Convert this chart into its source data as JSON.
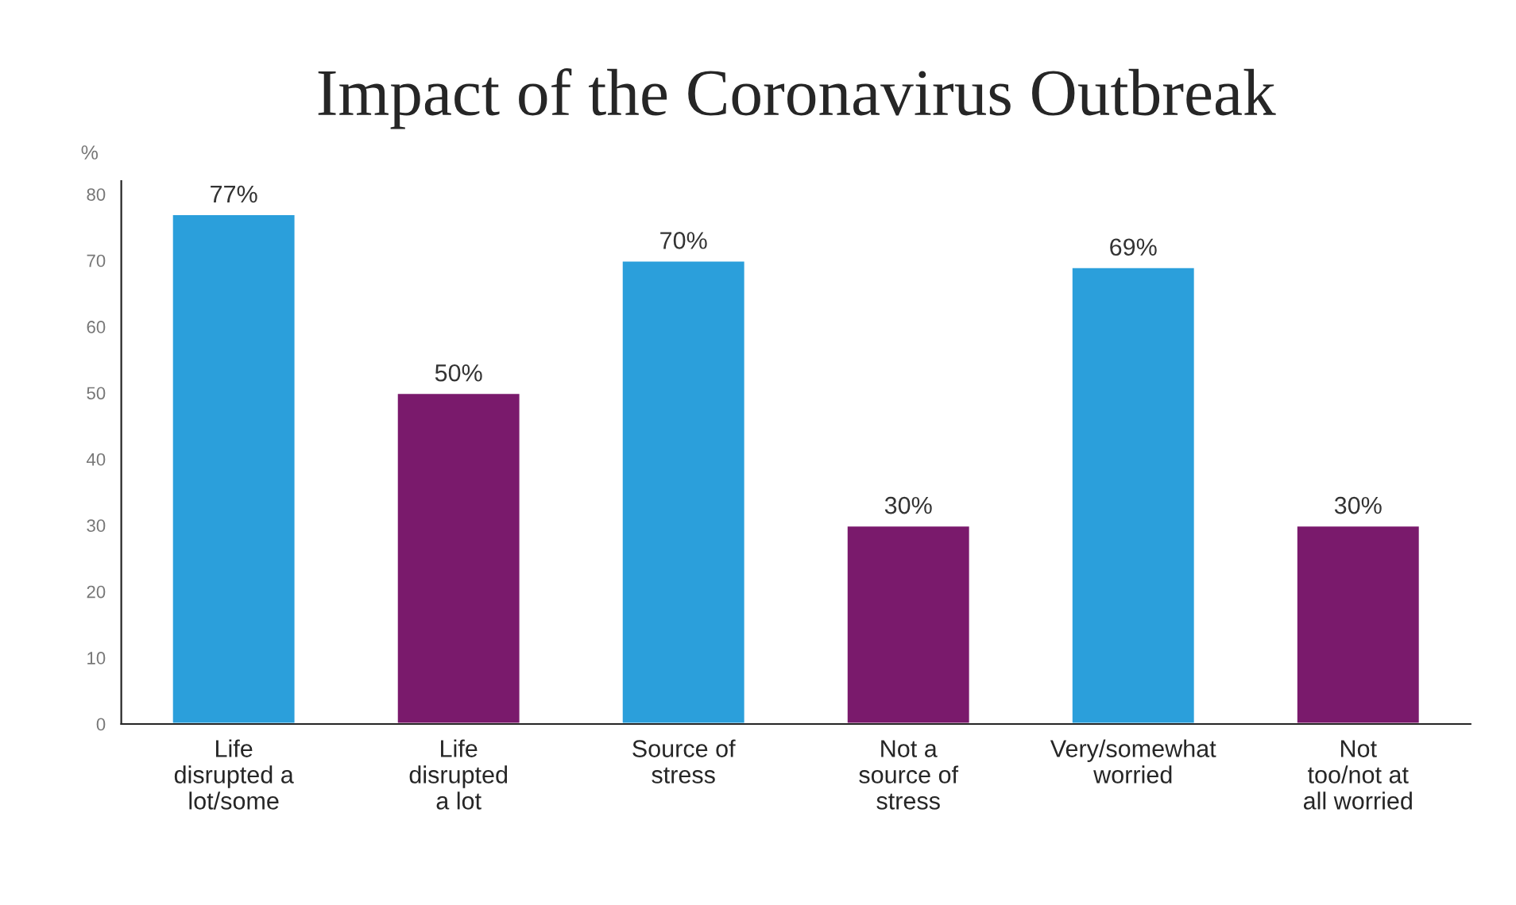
{
  "chart_data": {
    "type": "bar",
    "title": "Impact of the Coronavirus Outbreak",
    "ylabel": "%",
    "categories": [
      "Life\ndisrupted a\nlot/some",
      "Life\ndisrupted\na lot",
      "Source of\nstress",
      "Not a\nsource of\nstress",
      "Very/somewhat\nworried",
      "Not\ntoo/not at\nall worried"
    ],
    "values": [
      77,
      50,
      70,
      30,
      69,
      30
    ],
    "colors": [
      "#2b9fdb",
      "#7a1a6c",
      "#2b9fdb",
      "#7a1a6c",
      "#2b9fdb",
      "#7a1a6c"
    ],
    "value_labels": [
      "77%",
      "50%",
      "70%",
      "30%",
      "69%",
      "30%"
    ],
    "ylim": [
      0,
      82
    ],
    "yticks": [
      0,
      10,
      20,
      30,
      40,
      50,
      60,
      70,
      80
    ],
    "grid": false,
    "legend": false
  }
}
